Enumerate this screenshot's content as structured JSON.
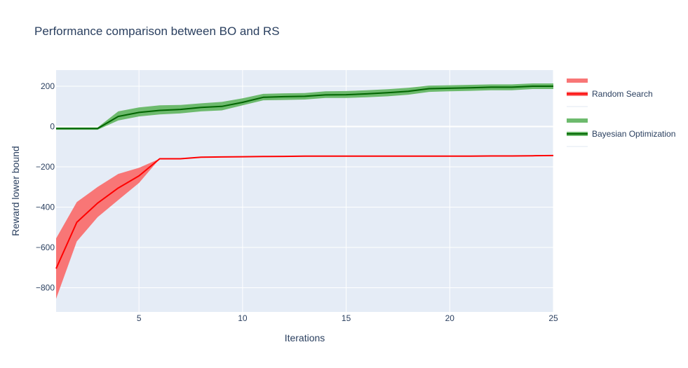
{
  "chart_data": {
    "type": "line",
    "title": "Performance comparison between BO and RS",
    "xlabel": "Iterations",
    "ylabel": "Reward lower bound",
    "xlim": [
      1,
      25
    ],
    "ylim": [
      -920,
      280
    ],
    "xticks": [
      5,
      10,
      15,
      20,
      25
    ],
    "yticks": [
      -800,
      -600,
      -400,
      -200,
      0,
      200
    ],
    "grid": true,
    "legend_position": "right",
    "x": [
      1,
      2,
      3,
      4,
      5,
      6,
      7,
      8,
      9,
      10,
      11,
      12,
      13,
      14,
      15,
      16,
      17,
      18,
      19,
      20,
      21,
      22,
      23,
      24,
      25
    ],
    "series": [
      {
        "name": "Random Search",
        "color": "#ff0000",
        "band_color": "#f87676",
        "mean": [
          -705,
          -475,
          -380,
          -305,
          -245,
          -160,
          -160,
          -152,
          -151,
          -150,
          -149,
          -148,
          -147,
          -147,
          -147,
          -147,
          -147,
          -147,
          -147,
          -147,
          -147,
          -146,
          -146,
          -145,
          -144
        ],
        "upper": [
          -555,
          -375,
          -300,
          -235,
          -205,
          -160,
          -160,
          -152,
          -151,
          -150,
          -149,
          -148,
          -147,
          -147,
          -147,
          -147,
          -147,
          -147,
          -147,
          -147,
          -147,
          -146,
          -146,
          -145,
          -144
        ],
        "lower": [
          -855,
          -570,
          -450,
          -365,
          -280,
          -160,
          -160,
          -152,
          -151,
          -150,
          -149,
          -148,
          -147,
          -147,
          -147,
          -147,
          -147,
          -147,
          -147,
          -147,
          -147,
          -146,
          -146,
          -145,
          -144
        ]
      },
      {
        "name": "Bayesian Optimization",
        "color": "#006400",
        "band_color": "#6dba6d",
        "mean": [
          -10,
          -10,
          -10,
          50,
          70,
          80,
          85,
          95,
          100,
          120,
          145,
          148,
          150,
          157,
          158,
          162,
          168,
          175,
          188,
          190,
          192,
          195,
          195,
          200,
          200
        ],
        "upper": [
          -5,
          -5,
          -5,
          75,
          95,
          105,
          107,
          115,
          122,
          140,
          162,
          165,
          166,
          175,
          176,
          180,
          185,
          192,
          203,
          205,
          207,
          209,
          209,
          214,
          214
        ],
        "lower": [
          -16,
          -16,
          -16,
          30,
          50,
          60,
          65,
          75,
          80,
          105,
          130,
          132,
          134,
          142,
          142,
          145,
          150,
          158,
          172,
          175,
          177,
          180,
          180,
          186,
          186
        ]
      }
    ]
  }
}
